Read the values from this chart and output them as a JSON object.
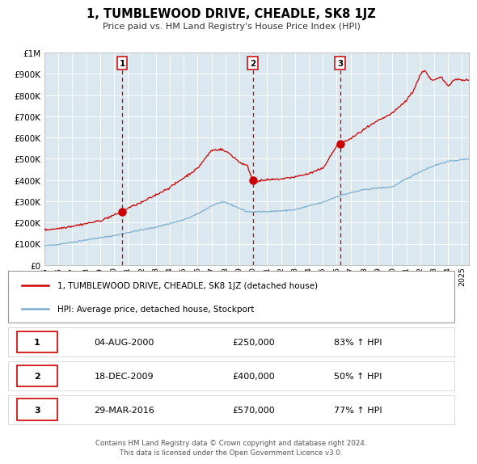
{
  "title": "1, TUMBLEWOOD DRIVE, CHEADLE, SK8 1JZ",
  "subtitle": "Price paid vs. HM Land Registry's House Price Index (HPI)",
  "legend_line1": "1, TUMBLEWOOD DRIVE, CHEADLE, SK8 1JZ (detached house)",
  "legend_line2": "HPI: Average price, detached house, Stockport",
  "red_color": "#cc0000",
  "blue_color": "#7aafcf",
  "bg_color": "#dce8f0",
  "grid_color": "#ffffff",
  "vline_color": "#cc0000",
  "transactions": [
    {
      "label": "1",
      "date": 2000.58,
      "price": 250000
    },
    {
      "label": "2",
      "date": 2009.96,
      "price": 400000
    },
    {
      "label": "3",
      "date": 2016.24,
      "price": 570000
    }
  ],
  "table_rows": [
    [
      "1",
      "04-AUG-2000",
      "£250,000",
      "83% ↑ HPI"
    ],
    [
      "2",
      "18-DEC-2009",
      "£400,000",
      "50% ↑ HPI"
    ],
    [
      "3",
      "29-MAR-2016",
      "£570,000",
      "77% ↑ HPI"
    ]
  ],
  "footnote1": "Contains HM Land Registry data © Crown copyright and database right 2024.",
  "footnote2": "This data is licensed under the Open Government Licence v3.0.",
  "ylim": [
    0,
    1000000
  ],
  "xlim_start": 1995.0,
  "xlim_end": 2025.5,
  "ylabel_ticks": [
    0,
    100000,
    200000,
    300000,
    400000,
    500000,
    600000,
    700000,
    800000,
    900000,
    1000000
  ],
  "ylabel_labels": [
    "£0",
    "£100K",
    "£200K",
    "£300K",
    "£400K",
    "£500K",
    "£600K",
    "£700K",
    "£800K",
    "£900K",
    "£1M"
  ],
  "xtick_years": [
    1995,
    1996,
    1997,
    1998,
    1999,
    2000,
    2001,
    2002,
    2003,
    2004,
    2005,
    2006,
    2007,
    2008,
    2009,
    2010,
    2011,
    2012,
    2013,
    2014,
    2015,
    2016,
    2017,
    2018,
    2019,
    2020,
    2021,
    2022,
    2023,
    2024,
    2025
  ]
}
